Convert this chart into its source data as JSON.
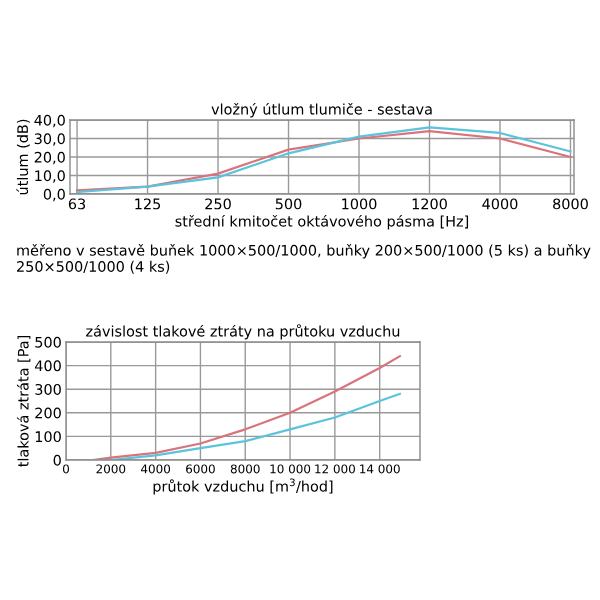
{
  "chart_data": [
    {
      "type": "line",
      "title": "vložný útlum tlumiče - sestava",
      "xlabel": "střední kmitočet oktávového pásma [Hz]",
      "ylabel": "útlum (dB)",
      "categories": [
        "63",
        "125",
        "250",
        "500",
        "1000",
        "1200",
        "4000",
        "8000"
      ],
      "series": [
        {
          "color": "#d9737c",
          "values": [
            2,
            4,
            11,
            24,
            30,
            34,
            30,
            20
          ]
        },
        {
          "color": "#5bc3dc",
          "values": [
            1,
            4,
            9,
            22,
            31,
            36,
            33,
            23
          ]
        }
      ],
      "ylim": [
        0,
        40
      ],
      "yticks": [
        {
          "value": 0,
          "label": "0,0"
        },
        {
          "value": 10,
          "label": "10,0"
        },
        {
          "value": 20,
          "label": "20,0"
        },
        {
          "value": 30,
          "label": "30,0"
        },
        {
          "value": 40,
          "label": "40,0"
        }
      ],
      "grid": true,
      "legend": false,
      "annotations": [
        "měřeno v sestavě buňek 1000×500/1000, buňky 200×500/1000 (5 ks) a buňky 250×500/1000 (4 ks)"
      ]
    },
    {
      "type": "line",
      "title": "závislost tlakové ztráty na průtoku vzduchu",
      "xlabel": "průtok vzduchu [m$^{3}$/hod]",
      "ylabel": "tlaková ztráta [Pa]",
      "series": [
        {
          "color": "#d9737c",
          "x": [
            1200,
            2000,
            4000,
            6000,
            8000,
            10000,
            12000,
            14000,
            14900
          ],
          "values": [
            0,
            10,
            30,
            70,
            130,
            200,
            290,
            390,
            440
          ]
        },
        {
          "color": "#5bc3dc",
          "x": [
            1200,
            2000,
            4000,
            6000,
            8000,
            10000,
            12000,
            14000,
            14900
          ],
          "values": [
            0,
            0,
            20,
            50,
            80,
            130,
            180,
            250,
            280
          ]
        }
      ],
      "xlim": [
        0,
        15800
      ],
      "xticks": [
        0,
        2000,
        4000,
        6000,
        8000,
        {
          "value": 10000,
          "label": "10 000"
        },
        {
          "value": 12000,
          "label": "12 000"
        },
        {
          "value": 14000,
          "label": "14 000"
        }
      ],
      "ylim": [
        0,
        500
      ],
      "yticks": [
        0,
        100,
        200,
        300,
        400,
        500
      ],
      "grid": true,
      "legend": false
    }
  ]
}
